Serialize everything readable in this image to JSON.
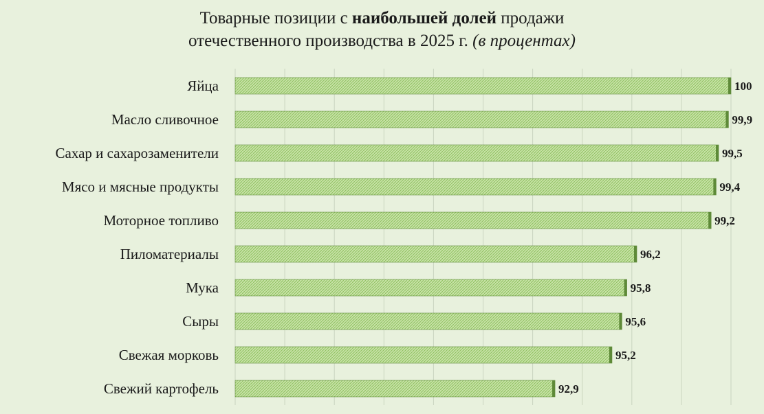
{
  "chart_data": {
    "type": "bar",
    "orientation": "horizontal",
    "title": {
      "line1_prefix": "Товарные позиции с ",
      "line1_bold": "наибольшей долей",
      "line1_suffix": " продажи",
      "line2_text": "отечественного производства в 2025 г. ",
      "line2_italic": "(в процентах)"
    },
    "categories": [
      "Яйца",
      "Масло сливочное",
      "Сахар и сахарозаменители",
      "Мясо и мясные продукты",
      "Моторное топливо",
      "Пиломатериалы",
      "Мука",
      "Сыры",
      "Свежая морковь",
      "Свежий картофель"
    ],
    "values": [
      100,
      99.9,
      99.5,
      99.4,
      99.2,
      96.2,
      95.8,
      95.6,
      95.2,
      92.9
    ],
    "value_labels": [
      "100",
      "99,9",
      "99,5",
      "99,4",
      "99,2",
      "96,2",
      "95,8",
      "95,6",
      "95,2",
      "92,9"
    ],
    "xlim": [
      80,
      100
    ],
    "xlabel": "",
    "ylabel": "",
    "grid": true,
    "legend": "none",
    "colors": {
      "bar_light": "#c6e2a5",
      "bar_dark": "#8fc060",
      "bar_edge": "#5e8a38",
      "background": "#e8f1dd",
      "grid": "#c9d4bf"
    }
  }
}
